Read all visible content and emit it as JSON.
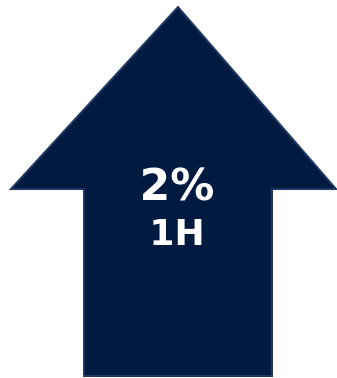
{
  "arrow": {
    "direction": "up",
    "fill_color": "#001a40",
    "stroke_color": "#1f3864",
    "value_label": "2%",
    "period_label": "1H"
  }
}
